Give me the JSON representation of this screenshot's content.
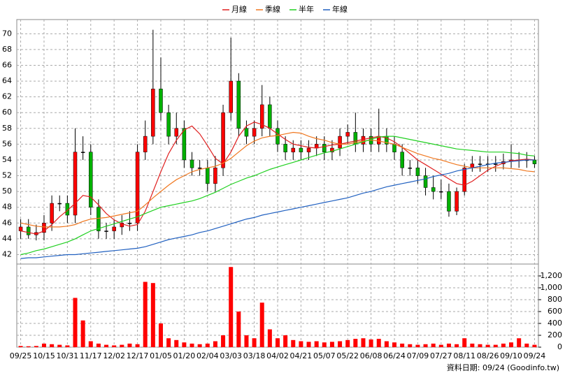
{
  "chart_data": [
    {
      "type": "candlestick",
      "categories": [
        "09/25",
        null,
        null,
        "10/15",
        null,
        null,
        "10/31",
        null,
        null,
        "11/17",
        null,
        null,
        "12/02",
        null,
        null,
        "12/17",
        null,
        null,
        "01/05",
        null,
        null,
        "01/20",
        null,
        null,
        "02/04",
        null,
        null,
        "03/03",
        null,
        null,
        "03/18",
        null,
        null,
        "04/02",
        null,
        null,
        "04/21",
        null,
        null,
        "05/07",
        null,
        null,
        "05/22",
        null,
        null,
        "06/08",
        null,
        null,
        "06/24",
        null,
        null,
        "07/09",
        null,
        null,
        "07/27",
        null,
        null,
        "08/11",
        null,
        null,
        "08/26",
        null,
        null,
        "09/10",
        null,
        null,
        "09/24"
      ],
      "open": [
        45,
        45.5,
        44.5,
        44.8,
        46,
        48.5,
        48.5,
        47,
        55,
        55,
        48,
        45,
        45,
        45.5,
        46,
        46,
        55,
        57,
        63,
        60,
        57,
        58,
        54,
        53,
        53,
        51,
        53,
        60,
        64,
        58,
        57,
        58,
        61,
        58,
        56,
        55,
        55.5,
        55,
        55.5,
        56,
        55,
        55.5,
        57,
        57.5,
        56,
        57,
        56,
        57,
        56,
        55,
        53,
        53,
        52,
        50.5,
        50,
        50,
        47.5,
        50,
        53,
        53.5,
        53.5,
        53.5,
        53.5,
        53.8,
        54,
        54,
        54
      ],
      "high": [
        46.5,
        46.5,
        45.8,
        47,
        49.5,
        49.5,
        49.5,
        58,
        57,
        56,
        49,
        46,
        46.5,
        47,
        47.5,
        56,
        59,
        70.5,
        67,
        61,
        60,
        59,
        55,
        54,
        54,
        54.5,
        61,
        69.5,
        65,
        59,
        59,
        63.5,
        62,
        59,
        57,
        56.5,
        56.5,
        56.5,
        57,
        57,
        56.5,
        58,
        58.5,
        60,
        58,
        58,
        60.5,
        58,
        57,
        56,
        54,
        54,
        53,
        52,
        51.5,
        51,
        50.5,
        53.5,
        54.5,
        54.5,
        54.5,
        54.5,
        54.8,
        56,
        55,
        55,
        54.5
      ],
      "low": [
        44,
        44,
        43.8,
        43.8,
        45,
        47.5,
        46,
        46,
        54,
        47,
        44,
        44,
        44,
        44.5,
        45,
        45,
        54,
        56,
        59,
        56,
        56,
        53,
        52,
        52,
        50,
        50,
        52,
        59,
        57,
        56,
        56,
        57,
        57,
        55,
        54,
        54,
        54,
        54,
        54.5,
        54,
        54,
        54.5,
        56,
        55,
        55,
        55,
        55,
        55,
        54,
        52,
        52,
        51,
        49.5,
        49,
        49,
        46.8,
        47,
        49.5,
        52.5,
        52.5,
        52.5,
        52.5,
        52.8,
        53,
        53,
        53,
        53
      ],
      "close": [
        45.5,
        44.5,
        44.8,
        46,
        48.5,
        48.5,
        47,
        55,
        55,
        48,
        45,
        45,
        45.5,
        46,
        46,
        55,
        57,
        63,
        60,
        57,
        58,
        54,
        53,
        53,
        51,
        53,
        60,
        64,
        58,
        57,
        58,
        61,
        58,
        56,
        55,
        55.5,
        55,
        55.5,
        56,
        55,
        55.5,
        57,
        57.5,
        56,
        57,
        56,
        57,
        56,
        55,
        53,
        53,
        52,
        50.5,
        50,
        50,
        47.5,
        50,
        53,
        53.5,
        53.5,
        53.5,
        53.5,
        53.8,
        54,
        54,
        54,
        53.5
      ],
      "up_color": "#ff0000",
      "down_color": "#00b000",
      "series": [
        {
          "name": "月線",
          "color": "#e02020",
          "values": [
            45,
            44.8,
            44.6,
            45,
            45.8,
            46.8,
            47.6,
            48.5,
            49.5,
            49.3,
            48.3,
            47.2,
            46.4,
            45.9,
            45.6,
            45.8,
            47.5,
            50,
            52.5,
            54.8,
            56.5,
            57.8,
            58.3,
            57.3,
            55.8,
            54.2,
            53.5,
            55,
            57,
            58.3,
            58.8,
            58.5,
            58,
            57.3,
            56.6,
            56,
            55.8,
            55.6,
            55.5,
            55.7,
            55.9,
            56,
            56.2,
            56.4,
            56.6,
            56.8,
            57,
            56.8,
            56.3,
            55.6,
            54.8,
            54,
            53.4,
            52.8,
            52.2,
            51.6,
            51,
            50.8,
            51.3,
            52,
            52.7,
            53.2,
            53.6,
            53.9,
            54,
            54.1,
            54
          ]
        },
        {
          "name": "季線",
          "color": "#f07820",
          "values": [
            46,
            45.8,
            45.6,
            45.5,
            45.5,
            45.5,
            45.6,
            45.8,
            46.2,
            46.5,
            46.6,
            46.7,
            46.9,
            47.1,
            47.3,
            47.5,
            48.3,
            49.2,
            50,
            50.8,
            51.5,
            52,
            52.5,
            52.8,
            53,
            53.2,
            53.6,
            54.2,
            55,
            55.8,
            56.4,
            56.8,
            57,
            57.1,
            57.3,
            57.5,
            57.4,
            57,
            56.7,
            56.5,
            56.2,
            56,
            56,
            56.2,
            56.4,
            56.5,
            56.4,
            56.2,
            56,
            55.6,
            55.2,
            54.8,
            54.5,
            54.2,
            54,
            53.7,
            53.4,
            53.2,
            53,
            53,
            53,
            53,
            53,
            52.9,
            52.8,
            52.6,
            52.5
          ]
        },
        {
          "name": "半年",
          "color": "#20d020",
          "values": [
            42,
            42.2,
            42.5,
            42.7,
            43,
            43.3,
            43.6,
            44,
            44.5,
            45,
            45.3,
            45.6,
            45.9,
            46.2,
            46.5,
            46.8,
            47.2,
            47.6,
            48,
            48.2,
            48.4,
            48.6,
            48.8,
            49.1,
            49.5,
            49.9,
            50.4,
            50.9,
            51.3,
            51.7,
            52,
            52.4,
            52.8,
            53.1,
            53.4,
            53.7,
            54,
            54.3,
            54.6,
            54.9,
            55.1,
            55.4,
            55.7,
            56,
            56.3,
            56.6,
            56.9,
            57,
            57,
            56.8,
            56.6,
            56.4,
            56.2,
            56,
            55.8,
            55.6,
            55.4,
            55.3,
            55.2,
            55.1,
            55,
            55,
            55,
            54.9,
            54.8,
            54.6,
            54.5
          ]
        },
        {
          "name": "年線",
          "color": "#2060c0",
          "values": [
            41.5,
            41.6,
            41.6,
            41.7,
            41.8,
            41.9,
            42,
            42,
            42.1,
            42.2,
            42.3,
            42.4,
            42.5,
            42.6,
            42.7,
            42.8,
            43,
            43.3,
            43.6,
            43.9,
            44.1,
            44.3,
            44.5,
            44.8,
            45,
            45.3,
            45.6,
            45.9,
            46.2,
            46.5,
            46.7,
            47,
            47.2,
            47.4,
            47.6,
            47.8,
            48,
            48.2,
            48.4,
            48.6,
            48.8,
            49,
            49.2,
            49.5,
            49.8,
            50,
            50.3,
            50.6,
            50.8,
            51,
            51.2,
            51.4,
            51.6,
            51.9,
            52.1,
            52.3,
            52.6,
            52.8,
            53,
            53.2,
            53.4,
            53.6,
            53.7,
            53.8,
            53.9,
            54,
            54
          ]
        }
      ],
      "ylim": [
        40.8,
        71.8
      ],
      "yticks": [
        42,
        44,
        46,
        48,
        50,
        52,
        54,
        56,
        58,
        60,
        62,
        64,
        66,
        68,
        70
      ],
      "grid": true,
      "legend": "top"
    },
    {
      "type": "bar",
      "values": [
        20,
        15,
        20,
        60,
        50,
        40,
        30,
        830,
        450,
        100,
        60,
        40,
        30,
        40,
        60,
        50,
        1100,
        1080,
        400,
        150,
        120,
        80,
        60,
        50,
        60,
        100,
        200,
        1350,
        600,
        200,
        150,
        750,
        300,
        150,
        200,
        120,
        100,
        90,
        100,
        80,
        90,
        100,
        120,
        140,
        150,
        130,
        140,
        100,
        80,
        60,
        50,
        40,
        50,
        60,
        40,
        60,
        50,
        150,
        60,
        50,
        40,
        40,
        60,
        80,
        150,
        60,
        40
      ],
      "color": "#ff0000",
      "ylim": [
        0,
        1400
      ],
      "yticks": [
        0,
        200,
        400,
        600,
        800,
        {
          "value": 1000,
          "label": "1,000"
        },
        {
          "value": 1200,
          "label": "1,200"
        }
      ],
      "grid": true
    }
  ],
  "footer": "資料日期: 09/24 (Goodinfo.tw)"
}
